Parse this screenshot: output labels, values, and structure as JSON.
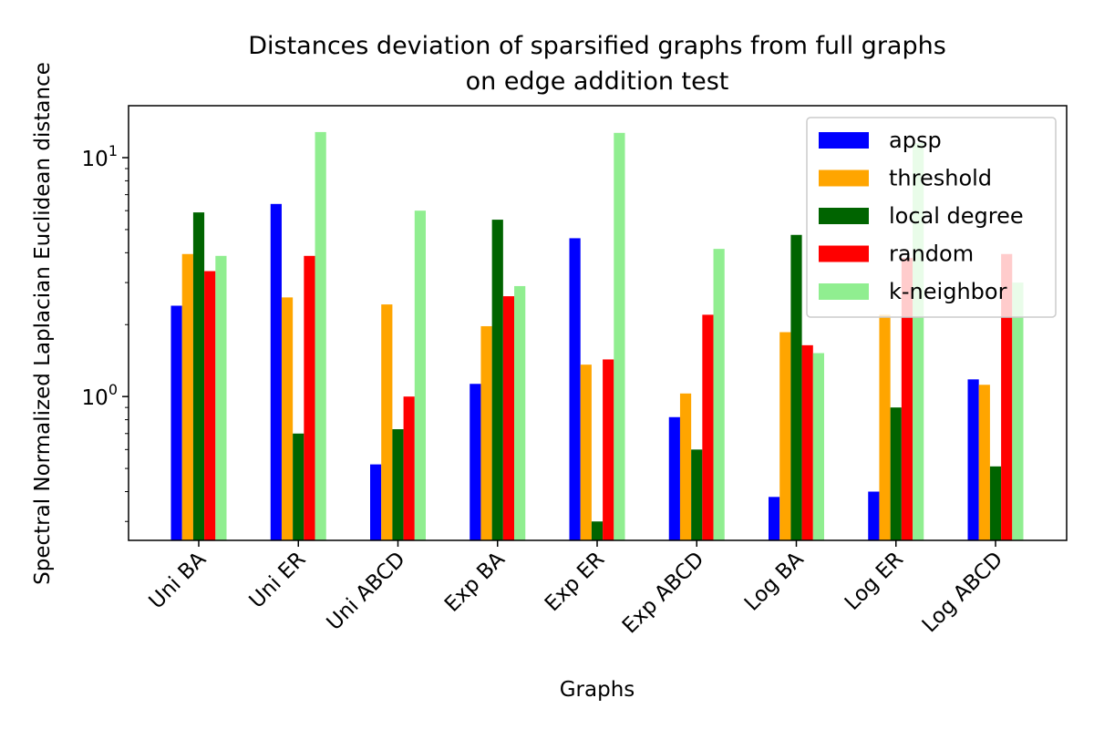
{
  "chart_data": {
    "type": "bar",
    "title": "Distances deviation of sparsified graphs from full graphs",
    "subtitle": "on edge addition test",
    "xlabel": "Graphs",
    "ylabel": "Spectral Normalized Laplacian Euclidean distance",
    "yscale": "log",
    "ylim": [
      0.25,
      16.5
    ],
    "yticks": [
      1,
      10
    ],
    "ytick_labels": [
      {
        "base": "10",
        "exp": "0"
      },
      {
        "base": "10",
        "exp": "1"
      }
    ],
    "grid": false,
    "legend_position": "top-right",
    "categories": [
      "Uni BA",
      "Uni ER",
      "Uni ABCD",
      "Exp BA",
      "Exp ER",
      "Exp ABCD",
      "Log BA",
      "Log ER",
      "Log ABCD"
    ],
    "series": [
      {
        "name": "apsp",
        "color": "#0000ff",
        "values": [
          2.4,
          6.4,
          0.52,
          1.13,
          4.6,
          0.82,
          0.38,
          0.4,
          1.18
        ]
      },
      {
        "name": "threshold",
        "color": "#ffa500",
        "values": [
          3.95,
          2.6,
          2.43,
          1.97,
          1.36,
          1.03,
          1.86,
          2.2,
          1.12
        ]
      },
      {
        "name": "local degree",
        "color": "#006400",
        "values": [
          5.9,
          0.7,
          0.73,
          5.5,
          0.3,
          0.6,
          4.75,
          0.9,
          0.51
        ]
      },
      {
        "name": "random",
        "color": "#ff0000",
        "values": [
          3.35,
          3.88,
          1.0,
          2.63,
          1.43,
          2.2,
          1.64,
          3.8,
          3.95
        ]
      },
      {
        "name": "k-neighbor",
        "color": "#90ee90",
        "values": [
          3.88,
          12.8,
          6.0,
          2.9,
          12.7,
          4.15,
          1.52,
          11.5,
          3.0
        ]
      }
    ]
  }
}
